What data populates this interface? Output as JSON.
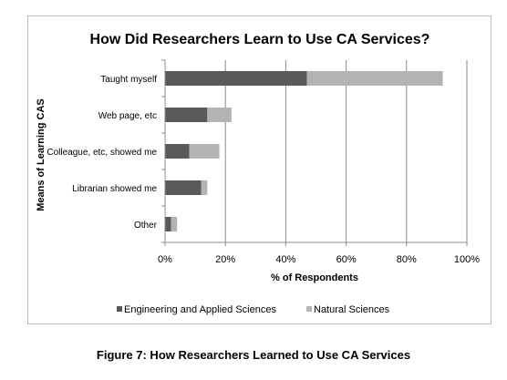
{
  "chart_data": {
    "type": "bar",
    "orientation": "horizontal",
    "stacked": true,
    "title": "How Did Researchers Learn to Use CA Services?",
    "xlabel": "% of Respondents",
    "ylabel": "Means of Learning CAS",
    "categories": [
      "Taught myself",
      "Web page, etc",
      "Colleague, etc, showed me",
      "Librarian showed me",
      "Other"
    ],
    "series": [
      {
        "name": "Engineering and Applied Sciences",
        "color": "#595959",
        "values": [
          47,
          14,
          8,
          12,
          2
        ]
      },
      {
        "name": "Natural Sciences",
        "color": "#b3b3b3",
        "values": [
          45,
          8,
          10,
          2,
          2
        ]
      }
    ],
    "xlim": [
      0,
      100
    ],
    "xticks": [
      0,
      20,
      40,
      60,
      80,
      100
    ],
    "xtick_labels": [
      "0%",
      "20%",
      "40%",
      "60%",
      "80%",
      "100%"
    ],
    "grid": "vertical",
    "legend_position": "bottom"
  },
  "caption": "Figure 7: How Researchers Learned to Use CA Services"
}
